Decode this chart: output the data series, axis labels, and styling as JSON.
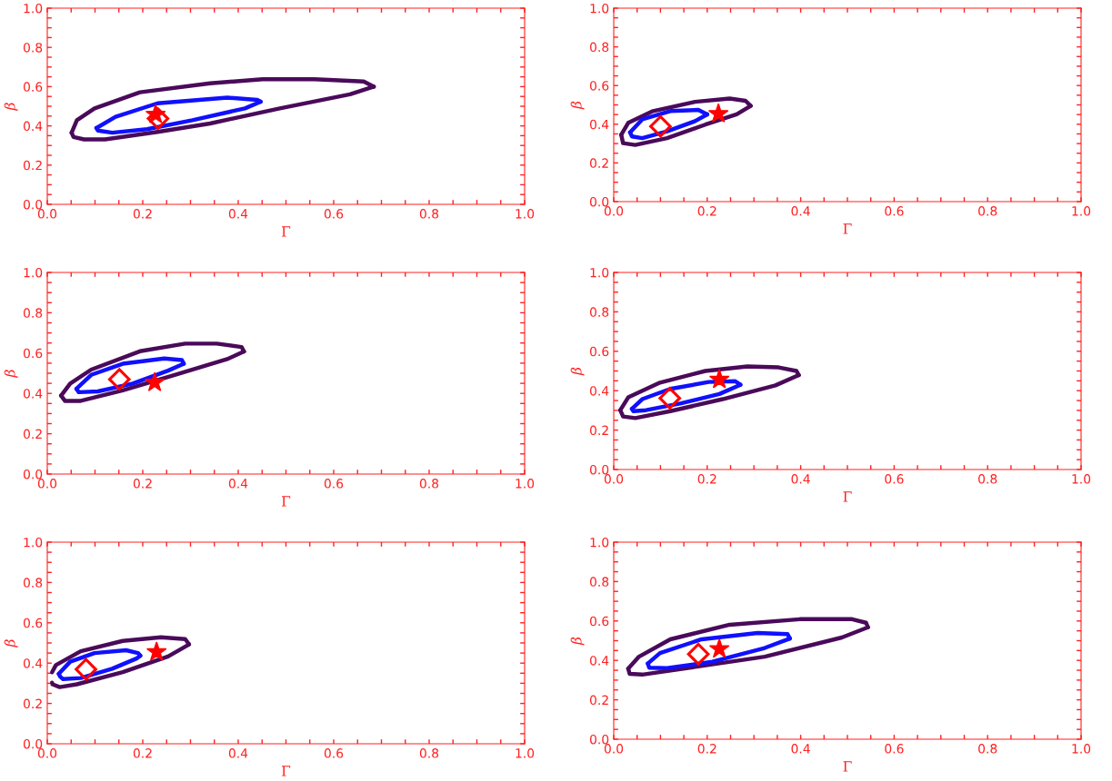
{
  "chart_data": [
    {
      "type": "line",
      "xlabel": "Γ",
      "ylabel": "β",
      "xlim": [
        0,
        1
      ],
      "ylim": [
        0,
        1
      ],
      "grid": false,
      "xticks": [
        {
          "value": 0,
          "label": "0.0"
        },
        {
          "value": 0.05,
          "label": null
        },
        {
          "value": 0.1,
          "label": null
        },
        {
          "value": 0.15,
          "label": null
        },
        0.2,
        {
          "value": 0.25,
          "label": null
        },
        {
          "value": 0.3,
          "label": null
        },
        {
          "value": 0.35,
          "label": null
        },
        0.4,
        {
          "value": 0.45,
          "label": null
        },
        {
          "value": 0.5,
          "label": null
        },
        {
          "value": 0.55,
          "label": null
        },
        0.6,
        {
          "value": 0.65,
          "label": null
        },
        {
          "value": 0.7,
          "label": null
        },
        {
          "value": 0.75,
          "label": null
        },
        0.8,
        {
          "value": 0.85,
          "label": null
        },
        {
          "value": 0.9,
          "label": null
        },
        {
          "value": 0.95,
          "label": null
        },
        {
          "value": 1,
          "label": "1.0"
        }
      ],
      "yticks": [
        {
          "value": 0,
          "label": "0.0"
        },
        {
          "value": 0.05,
          "label": null
        },
        {
          "value": 0.1,
          "label": null
        },
        {
          "value": 0.15,
          "label": null
        },
        0.2,
        {
          "value": 0.25,
          "label": null
        },
        {
          "value": 0.3,
          "label": null
        },
        {
          "value": 0.35,
          "label": null
        },
        0.4,
        {
          "value": 0.45,
          "label": null
        },
        {
          "value": 0.5,
          "label": null
        },
        {
          "value": 0.55,
          "label": null
        },
        0.6,
        {
          "value": 0.65,
          "label": null
        },
        {
          "value": 0.7,
          "label": null
        },
        {
          "value": 0.75,
          "label": null
        },
        0.8,
        {
          "value": 0.85,
          "label": null
        },
        {
          "value": 0.9,
          "label": null
        },
        {
          "value": 0.95,
          "label": null
        },
        {
          "value": 1,
          "label": "1.0"
        }
      ],
      "series": [
        {
          "color": "#4a0a5a",
          "x": [
            0.051,
            0.062,
            0.099,
            0.194,
            0.341,
            0.451,
            0.56,
            0.663,
            0.684
          ],
          "values": [
            0.365,
            0.429,
            0.489,
            0.571,
            0.617,
            0.638,
            0.638,
            0.626,
            0.6
          ]
        },
        {
          "color": "#4a0a5a",
          "x": [
            0.051,
            0.055,
            0.077,
            0.121,
            0.231,
            0.341,
            0.487,
            0.634,
            0.684
          ],
          "values": [
            0.365,
            0.343,
            0.331,
            0.331,
            0.369,
            0.412,
            0.489,
            0.561,
            0.6
          ]
        },
        {
          "color": "#1010ff",
          "x": [
            0.103,
            0.143,
            0.231,
            0.377,
            0.44,
            0.447
          ],
          "values": [
            0.389,
            0.446,
            0.515,
            0.544,
            0.532,
            0.523
          ]
        },
        {
          "color": "#1010ff",
          "x": [
            0.103,
            0.106,
            0.136,
            0.209,
            0.304,
            0.414,
            0.447
          ],
          "values": [
            0.389,
            0.376,
            0.365,
            0.383,
            0.429,
            0.489,
            0.523
          ]
        },
        {
          "type": "scatter",
          "color": "#ff0000",
          "marker": "diamond",
          "x": [
            0.232
          ],
          "values": [
            0.437
          ]
        },
        {
          "type": "scatter",
          "color": "#ff0000",
          "marker": "star",
          "x": [
            0.227
          ],
          "values": [
            0.458
          ]
        }
      ]
    },
    {
      "type": "line",
      "xlabel": "Γ",
      "ylabel": "β",
      "xlim": [
        0,
        1
      ],
      "ylim": [
        0,
        1
      ],
      "grid": false,
      "xticks": [
        {
          "value": 0,
          "label": "0.0"
        },
        {
          "value": 0.05,
          "label": null
        },
        {
          "value": 0.1,
          "label": null
        },
        {
          "value": 0.15,
          "label": null
        },
        0.2,
        {
          "value": 0.25,
          "label": null
        },
        {
          "value": 0.3,
          "label": null
        },
        {
          "value": 0.35,
          "label": null
        },
        0.4,
        {
          "value": 0.45,
          "label": null
        },
        {
          "value": 0.5,
          "label": null
        },
        {
          "value": 0.55,
          "label": null
        },
        0.6,
        {
          "value": 0.65,
          "label": null
        },
        {
          "value": 0.7,
          "label": null
        },
        {
          "value": 0.75,
          "label": null
        },
        0.8,
        {
          "value": 0.85,
          "label": null
        },
        {
          "value": 0.9,
          "label": null
        },
        {
          "value": 0.95,
          "label": null
        },
        {
          "value": 1,
          "label": "1.0"
        }
      ],
      "yticks": [
        {
          "value": 0,
          "label": "0.0"
        },
        {
          "value": 0.05,
          "label": null
        },
        {
          "value": 0.1,
          "label": null
        },
        {
          "value": 0.15,
          "label": null
        },
        0.2,
        {
          "value": 0.25,
          "label": null
        },
        {
          "value": 0.3,
          "label": null
        },
        {
          "value": 0.35,
          "label": null
        },
        0.4,
        {
          "value": 0.45,
          "label": null
        },
        {
          "value": 0.5,
          "label": null
        },
        {
          "value": 0.55,
          "label": null
        },
        0.6,
        {
          "value": 0.65,
          "label": null
        },
        {
          "value": 0.7,
          "label": null
        },
        {
          "value": 0.75,
          "label": null
        },
        0.8,
        {
          "value": 0.85,
          "label": null
        },
        {
          "value": 0.9,
          "label": null
        },
        {
          "value": 0.95,
          "label": null
        },
        {
          "value": 1,
          "label": "1.0"
        }
      ],
      "series": [
        {
          "color": "#4a0a5a",
          "x": [
            0.016,
            0.031,
            0.084,
            0.174,
            0.248,
            0.282,
            0.293
          ],
          "values": [
            0.346,
            0.407,
            0.468,
            0.516,
            0.533,
            0.521,
            0.495
          ]
        },
        {
          "color": "#4a0a5a",
          "x": [
            0.016,
            0.02,
            0.046,
            0.114,
            0.196,
            0.263,
            0.293
          ],
          "values": [
            0.346,
            0.302,
            0.293,
            0.328,
            0.398,
            0.451,
            0.495
          ]
        },
        {
          "color": "#1010ff",
          "x": [
            0.035,
            0.061,
            0.121,
            0.181,
            0.2
          ],
          "values": [
            0.358,
            0.425,
            0.468,
            0.474,
            0.451
          ]
        },
        {
          "color": "#1010ff",
          "x": [
            0.035,
            0.039,
            0.061,
            0.114,
            0.174,
            0.2
          ],
          "values": [
            0.358,
            0.337,
            0.328,
            0.363,
            0.416,
            0.451
          ]
        },
        {
          "type": "scatter",
          "color": "#ff0000",
          "marker": "diamond",
          "x": [
            0.1
          ],
          "values": [
            0.389
          ]
        },
        {
          "type": "scatter",
          "color": "#ff0000",
          "marker": "star",
          "x": [
            0.224
          ],
          "values": [
            0.454
          ]
        }
      ]
    },
    {
      "type": "line",
      "xlabel": "Γ",
      "ylabel": "β",
      "xlim": [
        0,
        1
      ],
      "ylim": [
        0,
        1
      ],
      "grid": false,
      "xticks": [
        {
          "value": 0,
          "label": "0.0"
        },
        {
          "value": 0.05,
          "label": null
        },
        {
          "value": 0.1,
          "label": null
        },
        {
          "value": 0.15,
          "label": null
        },
        0.2,
        {
          "value": 0.25,
          "label": null
        },
        {
          "value": 0.3,
          "label": null
        },
        {
          "value": 0.35,
          "label": null
        },
        0.4,
        {
          "value": 0.45,
          "label": null
        },
        {
          "value": 0.5,
          "label": null
        },
        {
          "value": 0.55,
          "label": null
        },
        0.6,
        {
          "value": 0.65,
          "label": null
        },
        {
          "value": 0.7,
          "label": null
        },
        {
          "value": 0.75,
          "label": null
        },
        0.8,
        {
          "value": 0.85,
          "label": null
        },
        {
          "value": 0.9,
          "label": null
        },
        {
          "value": 0.95,
          "label": null
        },
        {
          "value": 1,
          "label": "1.0"
        }
      ],
      "yticks": [
        {
          "value": 0,
          "label": "0.0"
        },
        {
          "value": 0.05,
          "label": null
        },
        {
          "value": 0.1,
          "label": null
        },
        {
          "value": 0.15,
          "label": null
        },
        0.2,
        {
          "value": 0.25,
          "label": null
        },
        {
          "value": 0.3,
          "label": null
        },
        {
          "value": 0.35,
          "label": null
        },
        0.4,
        {
          "value": 0.45,
          "label": null
        },
        {
          "value": 0.5,
          "label": null
        },
        {
          "value": 0.55,
          "label": null
        },
        0.6,
        {
          "value": 0.65,
          "label": null
        },
        {
          "value": 0.7,
          "label": null
        },
        {
          "value": 0.75,
          "label": null
        },
        0.8,
        {
          "value": 0.85,
          "label": null
        },
        {
          "value": 0.9,
          "label": null
        },
        {
          "value": 0.95,
          "label": null
        },
        {
          "value": 1,
          "label": "1.0"
        }
      ],
      "series": [
        {
          "color": "#4a0a5a",
          "x": [
            0.029,
            0.048,
            0.092,
            0.194,
            0.289,
            0.355,
            0.407,
            0.412
          ],
          "values": [
            0.389,
            0.449,
            0.518,
            0.609,
            0.647,
            0.647,
            0.63,
            0.608
          ]
        },
        {
          "color": "#4a0a5a",
          "x": [
            0.029,
            0.037,
            0.07,
            0.158,
            0.267,
            0.377,
            0.412
          ],
          "values": [
            0.389,
            0.363,
            0.363,
            0.415,
            0.492,
            0.57,
            0.608
          ]
        },
        {
          "color": "#1010ff",
          "x": [
            0.061,
            0.092,
            0.158,
            0.245,
            0.282,
            0.286
          ],
          "values": [
            0.423,
            0.492,
            0.547,
            0.573,
            0.565,
            0.547
          ]
        },
        {
          "color": "#1010ff",
          "x": [
            0.061,
            0.066,
            0.106,
            0.179,
            0.253,
            0.286
          ],
          "values": [
            0.423,
            0.406,
            0.41,
            0.449,
            0.513,
            0.547
          ]
        },
        {
          "type": "scatter",
          "color": "#ff0000",
          "marker": "diamond",
          "x": [
            0.151
          ],
          "values": [
            0.47
          ]
        },
        {
          "type": "scatter",
          "color": "#ff0000",
          "marker": "star",
          "x": [
            0.225
          ],
          "values": [
            0.454
          ]
        }
      ]
    },
    {
      "type": "line",
      "xlabel": "Γ",
      "ylabel": "β",
      "xlim": [
        0,
        1
      ],
      "ylim": [
        0,
        1
      ],
      "grid": false,
      "xticks": [
        {
          "value": 0,
          "label": "0.0"
        },
        {
          "value": 0.05,
          "label": null
        },
        {
          "value": 0.1,
          "label": null
        },
        {
          "value": 0.15,
          "label": null
        },
        0.2,
        {
          "value": 0.25,
          "label": null
        },
        {
          "value": 0.3,
          "label": null
        },
        {
          "value": 0.35,
          "label": null
        },
        0.4,
        {
          "value": 0.45,
          "label": null
        },
        {
          "value": 0.5,
          "label": null
        },
        {
          "value": 0.55,
          "label": null
        },
        0.6,
        {
          "value": 0.65,
          "label": null
        },
        {
          "value": 0.7,
          "label": null
        },
        {
          "value": 0.75,
          "label": null
        },
        0.8,
        {
          "value": 0.85,
          "label": null
        },
        {
          "value": 0.9,
          "label": null
        },
        {
          "value": 0.95,
          "label": null
        },
        {
          "value": 1,
          "label": "1.0"
        }
      ],
      "yticks": [
        {
          "value": 0,
          "label": "0.0"
        },
        {
          "value": 0.05,
          "label": null
        },
        {
          "value": 0.1,
          "label": null
        },
        {
          "value": 0.15,
          "label": null
        },
        0.2,
        {
          "value": 0.25,
          "label": null
        },
        {
          "value": 0.3,
          "label": null
        },
        {
          "value": 0.35,
          "label": null
        },
        0.4,
        {
          "value": 0.45,
          "label": null
        },
        {
          "value": 0.5,
          "label": null
        },
        {
          "value": 0.55,
          "label": null
        },
        0.6,
        {
          "value": 0.65,
          "label": null
        },
        {
          "value": 0.7,
          "label": null
        },
        {
          "value": 0.75,
          "label": null
        },
        0.8,
        {
          "value": 0.85,
          "label": null
        },
        {
          "value": 0.9,
          "label": null
        },
        {
          "value": 0.95,
          "label": null
        },
        {
          "value": 1,
          "label": "1.0"
        }
      ],
      "series": [
        {
          "color": "#4a0a5a",
          "x": [
            0.014,
            0.031,
            0.099,
            0.196,
            0.286,
            0.353,
            0.391,
            0.396
          ],
          "values": [
            0.301,
            0.366,
            0.441,
            0.5,
            0.523,
            0.518,
            0.5,
            0.479
          ]
        },
        {
          "color": "#4a0a5a",
          "x": [
            0.014,
            0.02,
            0.046,
            0.121,
            0.233,
            0.346,
            0.396
          ],
          "values": [
            0.301,
            0.269,
            0.261,
            0.296,
            0.357,
            0.427,
            0.479
          ]
        },
        {
          "color": "#1010ff",
          "x": [
            0.039,
            0.061,
            0.121,
            0.203,
            0.26,
            0.271
          ],
          "values": [
            0.308,
            0.357,
            0.409,
            0.444,
            0.448,
            0.43
          ]
        },
        {
          "color": "#1010ff",
          "x": [
            0.039,
            0.042,
            0.069,
            0.144,
            0.226,
            0.271
          ],
          "values": [
            0.308,
            0.296,
            0.301,
            0.336,
            0.383,
            0.43
          ]
        },
        {
          "type": "scatter",
          "color": "#ff0000",
          "marker": "diamond",
          "x": [
            0.12
          ],
          "values": [
            0.362
          ]
        },
        {
          "type": "scatter",
          "color": "#ff0000",
          "marker": "star",
          "x": [
            0.226
          ],
          "values": [
            0.457
          ]
        }
      ]
    },
    {
      "type": "line",
      "xlabel": "Γ",
      "ylabel": "β",
      "xlim": [
        0,
        1
      ],
      "ylim": [
        0,
        1
      ],
      "grid": false,
      "xticks": [
        {
          "value": 0,
          "label": "0.0"
        },
        {
          "value": 0.05,
          "label": null
        },
        {
          "value": 0.1,
          "label": null
        },
        {
          "value": 0.15,
          "label": null
        },
        0.2,
        {
          "value": 0.25,
          "label": null
        },
        {
          "value": 0.3,
          "label": null
        },
        {
          "value": 0.35,
          "label": null
        },
        0.4,
        {
          "value": 0.45,
          "label": null
        },
        {
          "value": 0.5,
          "label": null
        },
        {
          "value": 0.55,
          "label": null
        },
        0.6,
        {
          "value": 0.65,
          "label": null
        },
        {
          "value": 0.7,
          "label": null
        },
        {
          "value": 0.75,
          "label": null
        },
        0.8,
        {
          "value": 0.85,
          "label": null
        },
        {
          "value": 0.9,
          "label": null
        },
        {
          "value": 0.95,
          "label": null
        },
        {
          "value": 1,
          "label": "1.0"
        }
      ],
      "yticks": [
        {
          "value": 0,
          "label": "0.0"
        },
        {
          "value": 0.05,
          "label": null
        },
        {
          "value": 0.1,
          "label": null
        },
        {
          "value": 0.15,
          "label": null
        },
        0.2,
        {
          "value": 0.25,
          "label": null
        },
        {
          "value": 0.3,
          "label": null
        },
        {
          "value": 0.35,
          "label": null
        },
        0.4,
        {
          "value": 0.45,
          "label": null
        },
        {
          "value": 0.5,
          "label": null
        },
        {
          "value": 0.55,
          "label": null
        },
        0.6,
        {
          "value": 0.65,
          "label": null
        },
        {
          "value": 0.7,
          "label": null
        },
        {
          "value": 0.75,
          "label": null
        },
        0.8,
        {
          "value": 0.85,
          "label": null
        },
        {
          "value": 0.9,
          "label": null
        },
        {
          "value": 0.95,
          "label": null
        },
        {
          "value": 1,
          "label": "1.0"
        }
      ],
      "series": [
        {
          "color": "#4a0a5a",
          "x": [
            0.01,
            0.018,
            0.07,
            0.158,
            0.238,
            0.289,
            0.297
          ],
          "values": [
            0.355,
            0.39,
            0.459,
            0.51,
            0.528,
            0.519,
            0.493
          ]
        },
        {
          "color": "#4a0a5a",
          "x": [
            0.01,
            0.011,
            0.026,
            0.062,
            0.158,
            0.253,
            0.297
          ],
          "values": [
            0.303,
            0.295,
            0.281,
            0.295,
            0.355,
            0.433,
            0.493
          ]
        },
        {
          "color": "#1010ff",
          "x": [
            0.024,
            0.048,
            0.099,
            0.165,
            0.19,
            0.195
          ],
          "values": [
            0.347,
            0.407,
            0.45,
            0.464,
            0.45,
            0.437
          ]
        },
        {
          "color": "#1010ff",
          "x": [
            0.024,
            0.027,
            0.033,
            0.07,
            0.136,
            0.188,
            0.195
          ],
          "values": [
            0.347,
            0.333,
            0.321,
            0.326,
            0.372,
            0.424,
            0.437
          ]
        },
        {
          "type": "scatter",
          "color": "#ff0000",
          "marker": "diamond",
          "x": [
            0.081
          ],
          "values": [
            0.369
          ]
        },
        {
          "type": "scatter",
          "color": "#ff0000",
          "marker": "star",
          "x": [
            0.229
          ],
          "values": [
            0.455
          ]
        }
      ]
    },
    {
      "type": "line",
      "xlabel": "Γ",
      "ylabel": "β",
      "xlim": [
        0,
        1
      ],
      "ylim": [
        0,
        1
      ],
      "grid": false,
      "xticks": [
        {
          "value": 0,
          "label": "0.0"
        },
        {
          "value": 0.05,
          "label": null
        },
        {
          "value": 0.1,
          "label": null
        },
        {
          "value": 0.15,
          "label": null
        },
        0.2,
        {
          "value": 0.25,
          "label": null
        },
        {
          "value": 0.3,
          "label": null
        },
        {
          "value": 0.35,
          "label": null
        },
        0.4,
        {
          "value": 0.45,
          "label": null
        },
        {
          "value": 0.5,
          "label": null
        },
        {
          "value": 0.55,
          "label": null
        },
        0.6,
        {
          "value": 0.65,
          "label": null
        },
        {
          "value": 0.7,
          "label": null
        },
        {
          "value": 0.75,
          "label": null
        },
        0.8,
        {
          "value": 0.85,
          "label": null
        },
        {
          "value": 0.9,
          "label": null
        },
        {
          "value": 0.95,
          "label": null
        },
        {
          "value": 1,
          "label": "1.0"
        }
      ],
      "yticks": [
        {
          "value": 0,
          "label": "0.0"
        },
        {
          "value": 0.05,
          "label": null
        },
        {
          "value": 0.1,
          "label": null
        },
        {
          "value": 0.15,
          "label": null
        },
        0.2,
        {
          "value": 0.25,
          "label": null
        },
        {
          "value": 0.3,
          "label": null
        },
        {
          "value": 0.35,
          "label": null
        },
        0.4,
        {
          "value": 0.45,
          "label": null
        },
        {
          "value": 0.5,
          "label": null
        },
        {
          "value": 0.55,
          "label": null
        },
        0.6,
        {
          "value": 0.65,
          "label": null
        },
        {
          "value": 0.7,
          "label": null
        },
        {
          "value": 0.75,
          "label": null
        },
        0.8,
        {
          "value": 0.85,
          "label": null
        },
        {
          "value": 0.9,
          "label": null
        },
        {
          "value": 0.95,
          "label": null
        },
        {
          "value": 1,
          "label": "1.0"
        }
      ],
      "series": [
        {
          "color": "#4a0a5a",
          "x": [
            0.031,
            0.054,
            0.121,
            0.248,
            0.398,
            0.51,
            0.54,
            0.544
          ],
          "values": [
            0.358,
            0.419,
            0.507,
            0.581,
            0.609,
            0.609,
            0.591,
            0.568
          ]
        },
        {
          "color": "#4a0a5a",
          "x": [
            0.031,
            0.034,
            0.061,
            0.174,
            0.323,
            0.488,
            0.544
          ],
          "values": [
            0.358,
            0.332,
            0.328,
            0.367,
            0.419,
            0.516,
            0.568
          ]
        },
        {
          "color": "#1010ff",
          "x": [
            0.073,
            0.099,
            0.188,
            0.308,
            0.372,
            0.377
          ],
          "values": [
            0.384,
            0.437,
            0.507,
            0.539,
            0.533,
            0.511
          ]
        },
        {
          "color": "#1010ff",
          "x": [
            0.073,
            0.076,
            0.114,
            0.211,
            0.323,
            0.377
          ],
          "values": [
            0.384,
            0.363,
            0.361,
            0.393,
            0.463,
            0.511
          ]
        },
        {
          "type": "scatter",
          "color": "#ff0000",
          "marker": "diamond",
          "x": [
            0.181
          ],
          "values": [
            0.432
          ]
        },
        {
          "type": "scatter",
          "color": "#ff0000",
          "marker": "star",
          "x": [
            0.226
          ],
          "values": [
            0.458
          ]
        }
      ]
    }
  ]
}
